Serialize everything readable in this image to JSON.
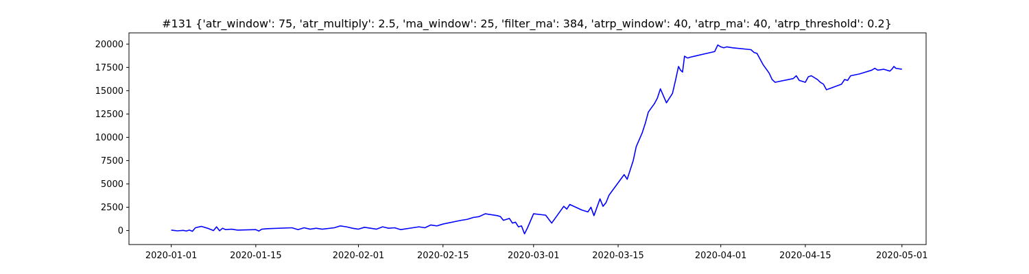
{
  "chart_data": {
    "type": "line",
    "title": "#131 {'atr_window': 75, 'atr_multiply': 2.5, 'ma_window': 25, 'filter_ma': 384, 'atrp_window': 40, 'atrp_ma': 40, 'atrp_threshold': 0.2}",
    "xlabel": "",
    "ylabel": "",
    "grid": false,
    "series_color": "#0000ff",
    "xlim": [
      "2019-12-25",
      "2020-05-05"
    ],
    "ylim": [
      -1500,
      21200
    ],
    "x_ticks": [
      "2020-01-01",
      "2020-01-15",
      "2020-02-01",
      "2020-02-15",
      "2020-03-01",
      "2020-03-15",
      "2020-04-01",
      "2020-04-15",
      "2020-05-01"
    ],
    "y_ticks": [
      0,
      2500,
      5000,
      7500,
      10000,
      12500,
      15000,
      17500,
      20000
    ],
    "y_tick_labels": [
      "0",
      "2500",
      "5000",
      "7500",
      "10000",
      "12500",
      "15000",
      "17500",
      "20000"
    ],
    "series": [
      {
        "x": [
          "2020-01-01",
          "2020-01-02",
          "2020-01-03",
          "2020-01-03",
          "2020-01-04",
          "2020-01-04",
          "2020-01-05",
          "2020-01-06",
          "2020-01-07",
          "2020-01-08",
          "2020-01-08",
          "2020-01-09",
          "2020-01-09",
          "2020-01-10",
          "2020-01-11",
          "2020-01-12",
          "2020-01-15",
          "2020-01-15",
          "2020-01-16",
          "2020-01-17",
          "2020-01-21",
          "2020-01-22",
          "2020-01-23",
          "2020-01-24",
          "2020-01-25",
          "2020-01-26",
          "2020-01-28",
          "2020-01-29",
          "2020-01-30",
          "2020-01-31",
          "2020-02-01",
          "2020-02-02",
          "2020-02-04",
          "2020-02-05",
          "2020-02-06",
          "2020-02-07",
          "2020-02-08",
          "2020-02-10",
          "2020-02-11",
          "2020-02-12",
          "2020-02-13",
          "2020-02-14",
          "2020-02-15",
          "2020-02-18",
          "2020-02-19",
          "2020-02-20",
          "2020-02-21",
          "2020-02-22",
          "2020-02-24",
          "2020-02-24",
          "2020-02-25",
          "2020-02-26",
          "2020-02-26",
          "2020-02-27",
          "2020-02-27",
          "2020-02-28",
          "2020-02-28",
          "2020-02-29",
          "2020-03-01",
          "2020-03-03",
          "2020-03-04",
          "2020-03-06",
          "2020-03-06",
          "2020-03-07",
          "2020-03-09",
          "2020-03-10",
          "2020-03-10",
          "2020-03-11",
          "2020-03-12",
          "2020-03-12",
          "2020-03-13",
          "2020-03-13",
          "2020-03-16",
          "2020-03-16",
          "2020-03-17",
          "2020-03-17",
          "2020-03-18",
          "2020-03-19",
          "2020-03-19",
          "2020-03-20",
          "2020-03-21",
          "2020-03-21",
          "2020-03-22",
          "2020-03-23",
          "2020-03-24",
          "2020-03-24",
          "2020-03-25",
          "2020-03-25",
          "2020-03-25",
          "2020-03-26",
          "2020-03-26",
          "2020-03-27",
          "2020-03-31",
          "2020-03-31",
          "2020-04-01",
          "2020-04-01",
          "2020-04-02",
          "2020-04-03",
          "2020-04-06",
          "2020-04-06",
          "2020-04-07",
          "2020-04-08",
          "2020-04-09",
          "2020-04-09",
          "2020-04-10",
          "2020-04-13",
          "2020-04-13",
          "2020-04-14",
          "2020-04-15",
          "2020-04-15",
          "2020-04-16",
          "2020-04-17",
          "2020-04-17",
          "2020-04-18",
          "2020-04-18",
          "2020-04-21",
          "2020-04-21",
          "2020-04-22",
          "2020-04-22",
          "2020-04-24",
          "2020-04-26",
          "2020-04-26",
          "2020-04-27",
          "2020-04-28",
          "2020-04-29",
          "2020-04-29",
          "2020-04-29",
          "2020-04-30",
          "2020-05-01"
        ],
        "y": [
          50,
          -30,
          20,
          -50,
          50,
          -80,
          300,
          450,
          250,
          0,
          400,
          -20,
          250,
          100,
          150,
          50,
          100,
          -50,
          150,
          200,
          300,
          100,
          300,
          150,
          250,
          150,
          300,
          500,
          400,
          250,
          150,
          350,
          150,
          400,
          250,
          300,
          100,
          300,
          400,
          300,
          600,
          500,
          700,
          1100,
          1200,
          1400,
          1500,
          1800,
          1600,
          1500,
          1100,
          1300,
          800,
          900,
          400,
          500,
          -350,
          300,
          1800,
          1650,
          800,
          2600,
          2300,
          2800,
          2200,
          2000,
          2500,
          1600,
          3400,
          2600,
          3000,
          3800,
          6000,
          5500,
          6500,
          7500,
          9000,
          10500,
          11500,
          12700,
          13600,
          14200,
          15200,
          13700,
          14700,
          16100,
          17600,
          17200,
          17000,
          18700,
          18500,
          18600,
          19200,
          19900,
          19700,
          19600,
          19700,
          19600,
          19400,
          19100,
          19000,
          17800,
          16900,
          16200,
          15900,
          16300,
          16600,
          16100,
          15900,
          16500,
          16600,
          16200,
          15900,
          15700,
          15100,
          15700,
          16200,
          16100,
          16600,
          16800,
          17200,
          17400,
          17200,
          17300,
          17100,
          17300,
          17600,
          17400,
          17300
        ]
      }
    ]
  }
}
